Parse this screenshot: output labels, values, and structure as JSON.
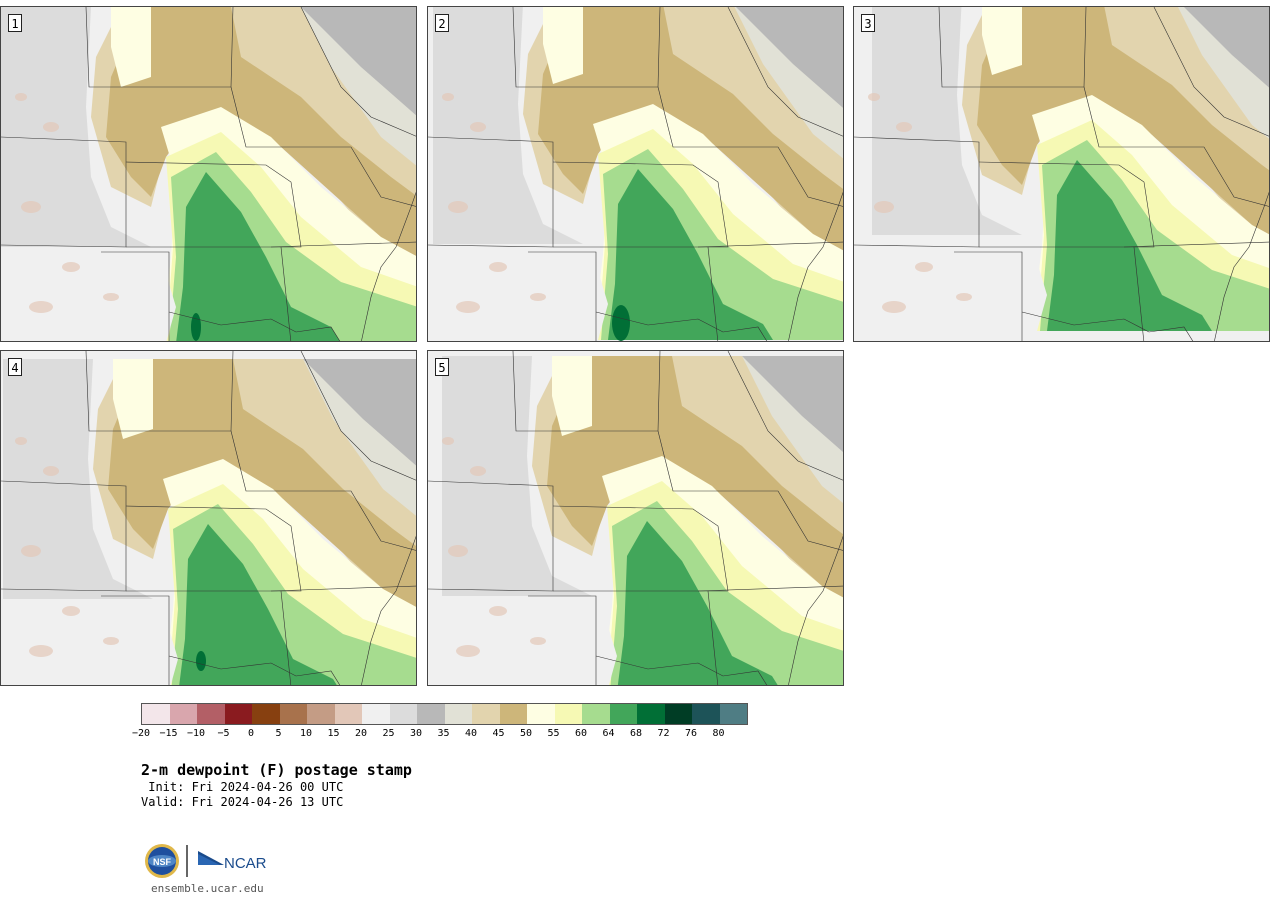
{
  "panels": [
    {
      "label": "1",
      "variant": 0
    },
    {
      "label": "2",
      "variant": 1
    },
    {
      "label": "3",
      "variant": 2
    },
    {
      "label": "4",
      "variant": 3
    },
    {
      "label": "5",
      "variant": 4
    }
  ],
  "colorbar": {
    "colors": [
      "#f3e6ea",
      "#d9a6ad",
      "#b35f66",
      "#8a1b1f",
      "#874010",
      "#a8724c",
      "#c49c85",
      "#e2c7b8",
      "#f0f0f0",
      "#dcdcdc",
      "#b8b8b8",
      "#e1e1d6",
      "#e2d4ae",
      "#cdb67a",
      "#fefee3",
      "#f6f9b4",
      "#a6dc8f",
      "#42a65a",
      "#016f36",
      "#003d25",
      "#1d5358",
      "#4f7d84"
    ],
    "ticks": [
      "−20",
      "−15",
      "−10",
      "−5",
      "0",
      "5",
      "10",
      "15",
      "20",
      "25",
      "30",
      "35",
      "40",
      "45",
      "50",
      "55",
      "60",
      "64",
      "68",
      "72",
      "76",
      "80"
    ]
  },
  "title": "2-m dewpoint (F) postage stamp",
  "init": " Init: Fri 2024-04-26 00 UTC",
  "valid": "Valid: Fri 2024-04-26 13 UTC",
  "logos": {
    "nsf": "NSF",
    "ncar": "NCAR"
  },
  "site": "ensemble.ucar.edu"
}
